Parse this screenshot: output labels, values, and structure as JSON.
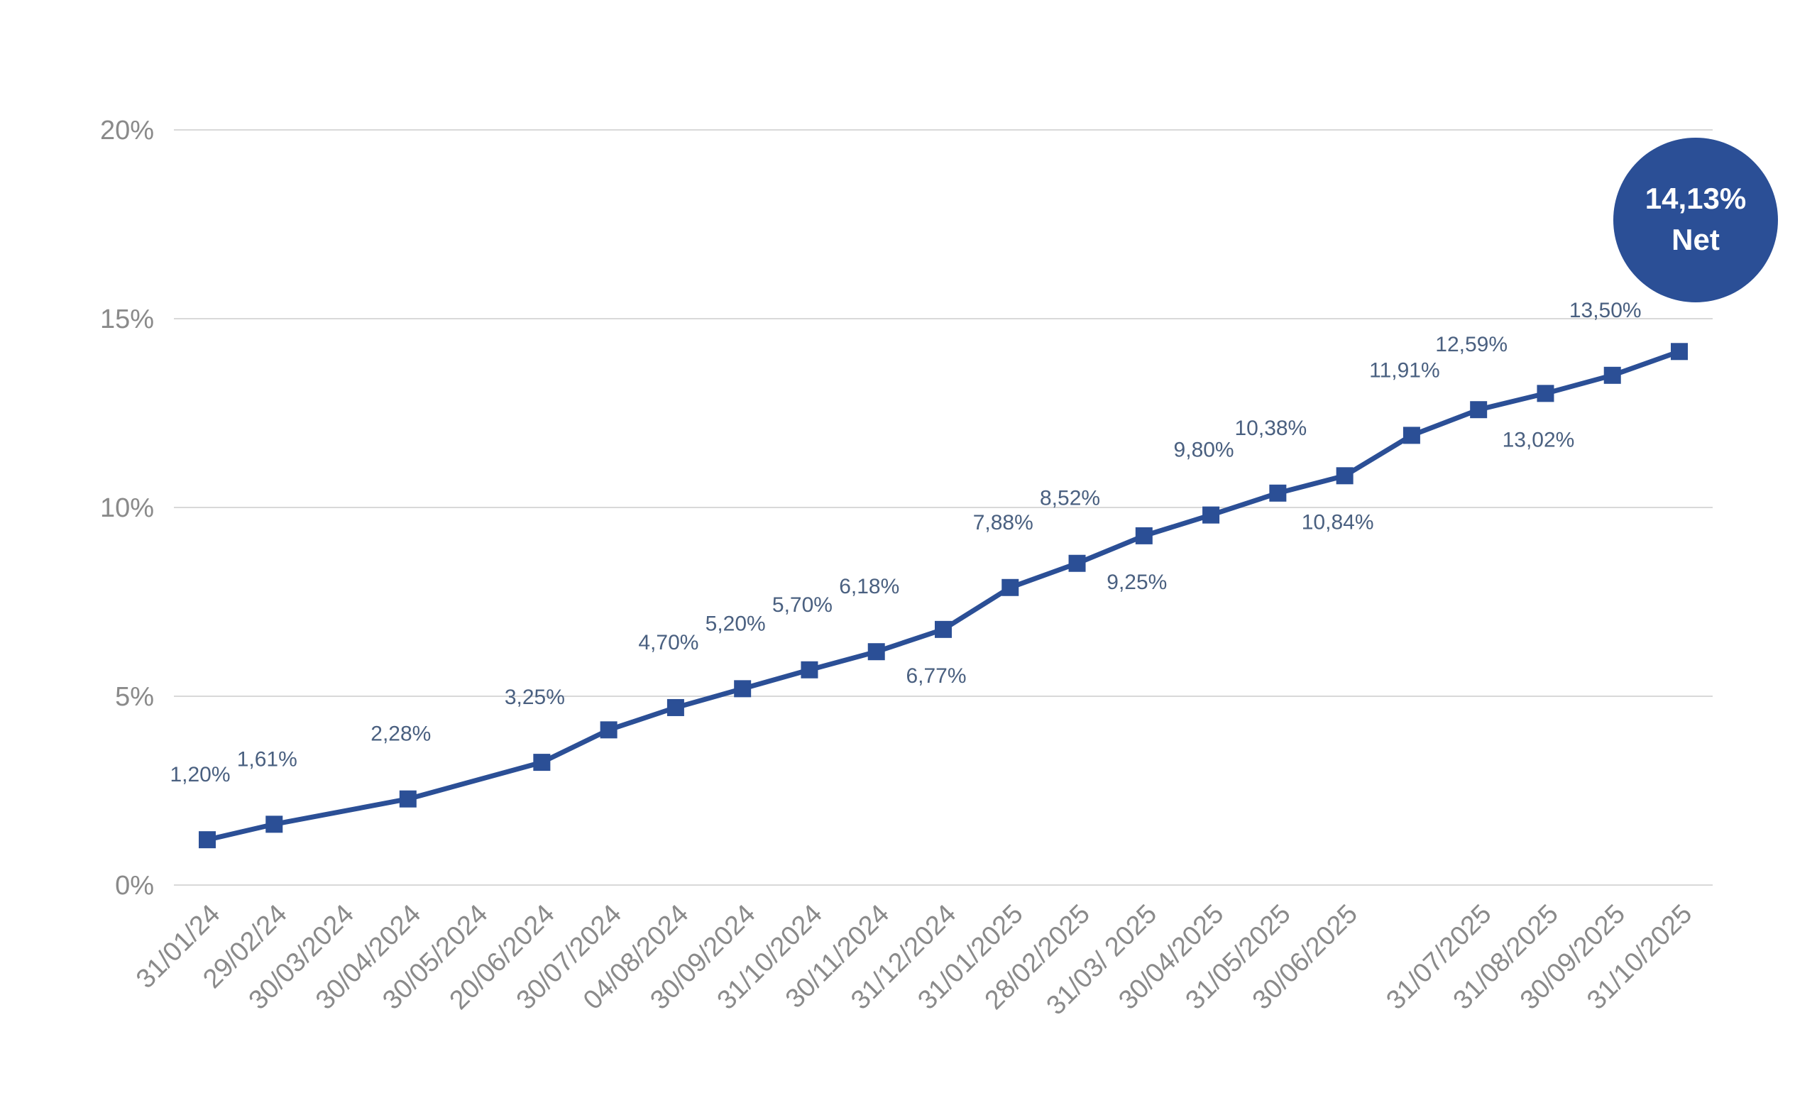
{
  "chart_data": {
    "type": "line",
    "title": "",
    "xlabel": "",
    "ylabel": "",
    "ylim": [
      0,
      20
    ],
    "yticks": [
      "0%",
      "5%",
      "10%",
      "15%",
      "20%"
    ],
    "ytick_values": [
      0,
      5,
      10,
      15,
      20
    ],
    "grid": true,
    "line_color": "#2b4f96",
    "categories": [
      "31/01/24",
      "29/02/24",
      "30/03/2024",
      "30/04/2024",
      "30/05/2024",
      "20/06/2024",
      "30/07/2024",
      "04/08/2024",
      "30/09/2024",
      "31/10/2024",
      "30/11/2024",
      "31/12/2024",
      "31/01/2025",
      "28/02/2025",
      "31/03/ 2025",
      "30/04/2025",
      "31/05/2025",
      "30/06/2025",
      "",
      "31/07/2025",
      "31/08/2025",
      "30/09/2025",
      "31/10/2025"
    ],
    "series": [
      {
        "name": "Net",
        "values": [
          1.2,
          1.61,
          null,
          2.28,
          null,
          3.25,
          4.11,
          4.7,
          5.2,
          5.7,
          6.18,
          6.77,
          7.88,
          8.52,
          9.25,
          9.8,
          10.38,
          10.84,
          11.91,
          12.59,
          13.02,
          13.5,
          14.13
        ],
        "labels": [
          "1,20%",
          "1,61%",
          "",
          "2,28%",
          "",
          "3,25%",
          "",
          "4,70%",
          "5,20%",
          "5,70%",
          "6,18%",
          "6,77%",
          "7,88%",
          "8,52%",
          "9,25%",
          "9,80%",
          "10,38%",
          "10,84%",
          "11,91%",
          "12,59%",
          "13,02%",
          "13,50%",
          ""
        ],
        "label_position": [
          "above",
          "above",
          "",
          "above",
          "",
          "above",
          "",
          "above",
          "above",
          "above",
          "above",
          "below",
          "above",
          "above",
          "below",
          "above",
          "above",
          "below",
          "above",
          "above",
          "below",
          "above",
          ""
        ]
      }
    ],
    "callout": {
      "value": "14,13%",
      "label": "Net",
      "color": "#2b4f96"
    }
  }
}
